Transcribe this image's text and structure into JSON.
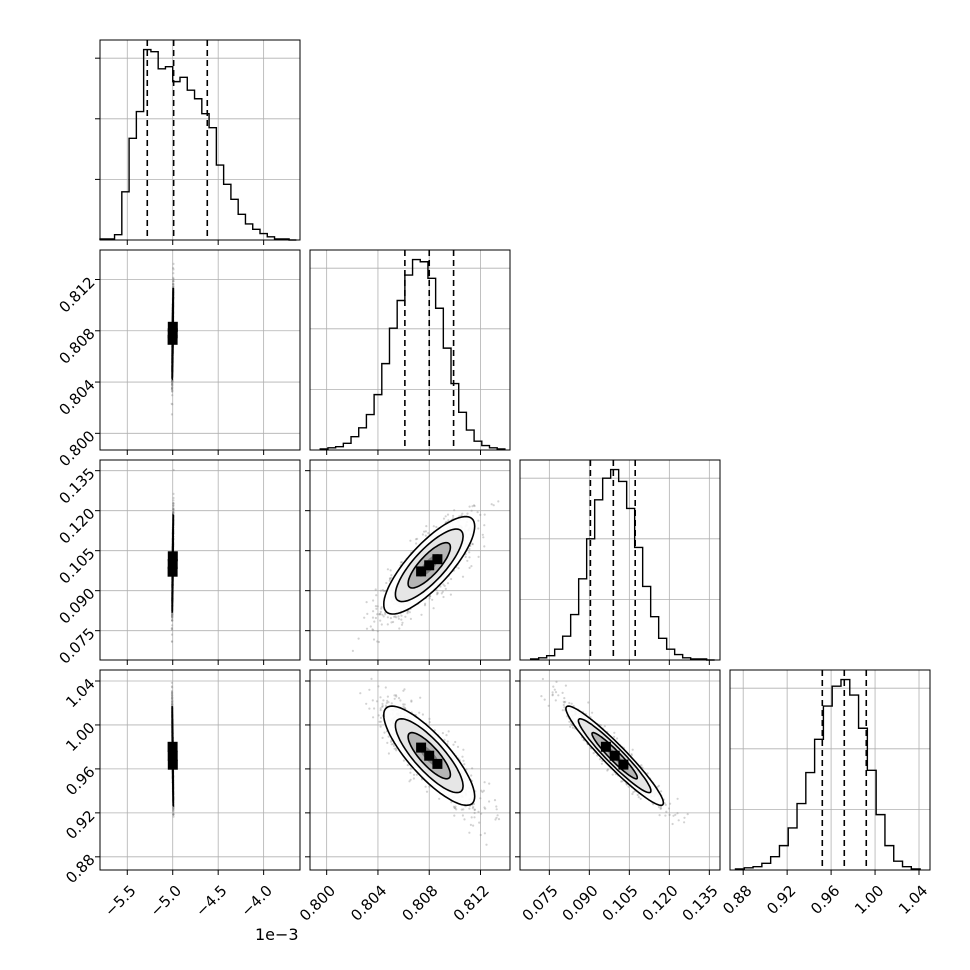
{
  "chart_data": {
    "type": "corner",
    "parameters": [
      {
        "range": [
          -5.8,
          -3.6
        ],
        "ticks": [
          "−5.5",
          "−5.0",
          "−4.5",
          "−4.0"
        ],
        "tick_values": [
          -5.5,
          -5.0,
          -4.5,
          -4.0
        ],
        "offset_text": "1e−3",
        "quantiles": [
          -5.28,
          -4.99,
          -4.62
        ],
        "histogram": {
          "edges": [
            -5.8,
            -5.72,
            -5.64,
            -5.56,
            -5.48,
            -5.4,
            -5.32,
            -5.24,
            -5.16,
            -5.08,
            -5.0,
            -4.92,
            -4.84,
            -4.76,
            -4.68,
            -4.6,
            -4.52,
            -4.44,
            -4.36,
            -4.28,
            -4.2,
            -4.12,
            -4.04,
            -3.96,
            -3.88,
            -3.8,
            -3.72,
            -3.64
          ],
          "counts": [
            1,
            1,
            5,
            45,
            95,
            120,
            178,
            176,
            160,
            162,
            148,
            152,
            140,
            132,
            118,
            105,
            70,
            52,
            38,
            24,
            15,
            10,
            6,
            3,
            1,
            1,
            0
          ]
        }
      },
      {
        "range": [
          0.7987,
          0.8143
        ],
        "ticks": [
          "0.800",
          "0.804",
          "0.808",
          "0.812"
        ],
        "tick_values": [
          0.8,
          0.804,
          0.808,
          0.812
        ],
        "quantiles": [
          0.8061,
          0.808,
          0.8099
        ],
        "histogram": {
          "edges": [
            0.7995,
            0.8001,
            0.8007,
            0.8013,
            0.8019,
            0.8025,
            0.8031,
            0.8037,
            0.8043,
            0.8049,
            0.8055,
            0.8061,
            0.8067,
            0.8073,
            0.8079,
            0.8085,
            0.8091,
            0.8097,
            0.8103,
            0.8109,
            0.8115,
            0.8121,
            0.8127,
            0.8133,
            0.8139
          ],
          "counts": [
            1,
            2,
            3,
            6,
            12,
            20,
            32,
            50,
            78,
            110,
            135,
            158,
            172,
            170,
            155,
            128,
            92,
            60,
            34,
            18,
            8,
            4,
            2,
            1
          ]
        }
      },
      {
        "range": [
          0.064,
          0.139
        ],
        "ticks": [
          "0.075",
          "0.090",
          "0.105",
          "0.120",
          "0.135"
        ],
        "tick_values": [
          0.075,
          0.09,
          0.105,
          0.12,
          0.135
        ],
        "quantiles": [
          0.0904,
          0.099,
          0.1072
        ],
        "histogram": {
          "edges": [
            0.068,
            0.071,
            0.074,
            0.077,
            0.08,
            0.083,
            0.086,
            0.089,
            0.092,
            0.095,
            0.098,
            0.101,
            0.104,
            0.107,
            0.11,
            0.113,
            0.116,
            0.119,
            0.122,
            0.125,
            0.128,
            0.131,
            0.134,
            0.137
          ],
          "counts": [
            1,
            2,
            4,
            10,
            22,
            42,
            75,
            112,
            148,
            168,
            176,
            165,
            140,
            104,
            68,
            40,
            20,
            10,
            5,
            2,
            1,
            1,
            0
          ]
        }
      },
      {
        "range": [
          0.868,
          1.05
        ],
        "ticks": [
          "0.88",
          "0.92",
          "0.96",
          "1.00",
          "1.04"
        ],
        "tick_values": [
          0.88,
          0.92,
          0.96,
          1.0,
          1.04
        ],
        "quantiles": [
          0.952,
          0.972,
          0.992
        ],
        "histogram": {
          "edges": [
            0.873,
            0.881,
            0.889,
            0.897,
            0.905,
            0.913,
            0.921,
            0.929,
            0.937,
            0.945,
            0.953,
            0.961,
            0.969,
            0.977,
            0.985,
            0.993,
            1.001,
            1.009,
            1.017,
            1.025,
            1.033,
            1.041
          ],
          "counts": [
            1,
            2,
            3,
            6,
            12,
            22,
            38,
            60,
            88,
            118,
            148,
            166,
            172,
            158,
            128,
            90,
            50,
            22,
            8,
            3,
            1
          ]
        }
      }
    ],
    "pairs": [
      {
        "x": 0,
        "y": 1,
        "center": [
          -5.0,
          0.8078
        ],
        "sd": [
          0.0028,
          0.00165
        ],
        "rho": 0.88
      },
      {
        "x": 0,
        "y": 2,
        "center": [
          -5.0,
          0.1
        ],
        "sd": [
          0.0028,
          0.0085
        ],
        "rho": 0.94
      },
      {
        "x": 1,
        "y": 2,
        "center": [
          0.808,
          0.0995
        ],
        "sd": [
          0.00165,
          0.0085
        ],
        "rho": 0.8
      },
      {
        "x": 0,
        "y": 3,
        "center": [
          -5.0,
          0.972
        ],
        "sd": [
          0.0028,
          0.021
        ],
        "rho": -0.96
      },
      {
        "x": 1,
        "y": 3,
        "center": [
          0.808,
          0.972
        ],
        "sd": [
          0.00165,
          0.021
        ],
        "rho": -0.82
      },
      {
        "x": 2,
        "y": 3,
        "center": [
          0.0995,
          0.972
        ],
        "sd": [
          0.0085,
          0.021
        ],
        "rho": -0.95
      }
    ],
    "grid": true,
    "colors": {
      "line": "#000000",
      "grid": "#b0b0b0",
      "scatter": "#7f7f7f",
      "fill_levels": [
        "#ffffff",
        "#e6e6e6",
        "#b5b5b5",
        "#7d7d7d",
        "#000000"
      ]
    }
  }
}
